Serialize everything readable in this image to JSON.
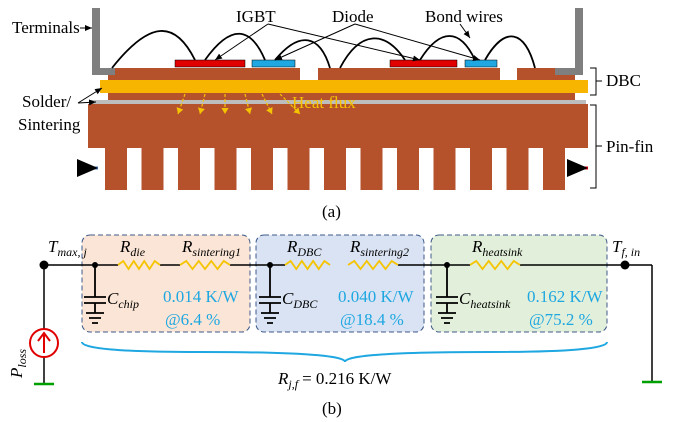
{
  "part_a": {
    "terminals": "Terminals",
    "igbt": "IGBT",
    "diode": "Diode",
    "bond_wires": "Bond wires",
    "dbc": "DBC",
    "solder": "Solder/",
    "sintering": "Sintering",
    "heat_flux": "Heat flux",
    "pin_fin": "Pin-fin",
    "caption": "(a)"
  },
  "part_b": {
    "node_in": {
      "symbol": "T",
      "subscript": "max, j"
    },
    "node_out": {
      "symbol": "T",
      "subscript": "f, in"
    },
    "source": {
      "symbol": "P",
      "subscript": "loss"
    },
    "blocks": [
      {
        "resistors": [
          {
            "symbol": "R",
            "subscript": "die"
          },
          {
            "symbol": "R",
            "subscript": "sintering1"
          }
        ],
        "capacitor": {
          "symbol": "C",
          "subscript": "chip"
        },
        "resistance": "0.014 K/W",
        "share": "@6.4 %"
      },
      {
        "resistors": [
          {
            "symbol": "R",
            "subscript": "DBC"
          },
          {
            "symbol": "R",
            "subscript": "sintering2"
          }
        ],
        "capacitor": {
          "symbol": "C",
          "subscript": "DBC"
        },
        "resistance": "0.040 K/W",
        "share": "@18.4 %"
      },
      {
        "resistors": [
          {
            "symbol": "R",
            "subscript": "heatsink"
          }
        ],
        "capacitor": {
          "symbol": "C",
          "subscript": "heatsink"
        },
        "resistance": "0.162 K/W",
        "share": "@75.2 %"
      }
    ],
    "total": {
      "symbol": "R",
      "subscript": "j,f",
      "text": "= 0.216 K/W"
    },
    "caption": "(b)"
  }
}
